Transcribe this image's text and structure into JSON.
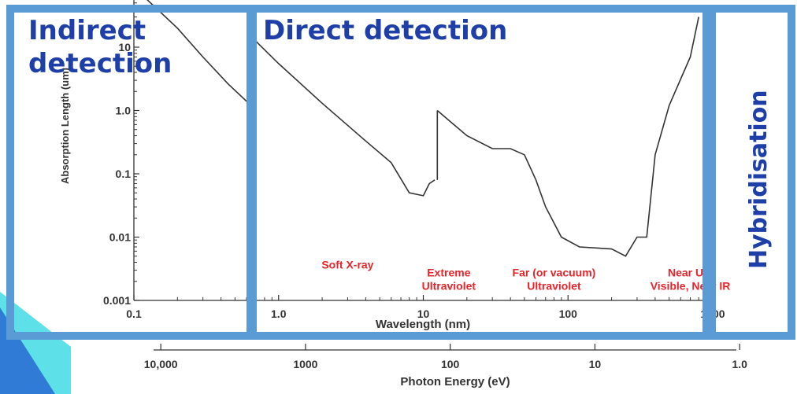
{
  "chart_data": {
    "type": "line",
    "xlabel": "Wavelength (nm)",
    "ylabel": "Absorption Length (um)",
    "x2label": "Photon Energy (eV)",
    "x_scale": "log",
    "y_scale": "log",
    "xlim": [
      0.1,
      1000
    ],
    "ylim": [
      0.001,
      60
    ],
    "x_ticks": [
      "0.1",
      "1.0",
      "10",
      "100",
      "1000"
    ],
    "y_ticks": [
      "0.001",
      "0.01",
      "0.1",
      "1.0",
      "10"
    ],
    "x2_ticks": [
      {
        "label": "10,000",
        "wavelength": 0.124
      },
      {
        "label": "1000",
        "wavelength": 1.24
      },
      {
        "label": "100",
        "wavelength": 12.4
      },
      {
        "label": "10",
        "wavelength": 124
      },
      {
        "label": "1.0",
        "wavelength": 1240
      }
    ],
    "series": [
      {
        "segments": [
          [
            [
              0.12,
              60
            ],
            [
              0.2,
              20
            ],
            [
              0.3,
              7
            ],
            [
              0.45,
              2.6
            ],
            [
              0.6,
              1.4
            ],
            [
              0.65,
              1.3
            ]
          ],
          [
            [
              0.66,
              14
            ],
            [
              1.0,
              5.5
            ],
            [
              2.0,
              1.3
            ],
            [
              4.0,
              0.33
            ],
            [
              6.0,
              0.15
            ],
            [
              8.0,
              0.05
            ],
            [
              10.0,
              0.045
            ],
            [
              11.0,
              0.07
            ],
            [
              12.0,
              0.08
            ]
          ],
          [
            [
              12.5,
              1.0
            ],
            [
              15,
              0.7
            ],
            [
              20,
              0.4
            ],
            [
              30,
              0.25
            ],
            [
              40,
              0.25
            ],
            [
              50,
              0.2
            ],
            [
              60,
              0.08
            ],
            [
              70,
              0.03
            ],
            [
              90,
              0.01
            ],
            [
              120,
              0.007
            ],
            [
              200,
              0.0065
            ],
            [
              250,
              0.005
            ],
            [
              300,
              0.01
            ],
            [
              350,
              0.01
            ],
            [
              400,
              0.2
            ],
            [
              500,
              1.2
            ],
            [
              700,
              7
            ],
            [
              800,
              30
            ]
          ]
        ]
      }
    ],
    "annotations": [
      {
        "text": "Soft X-ray",
        "x": 3.0,
        "y": 0.0032
      },
      {
        "text": "Extreme\nUltraviolet",
        "x": 15,
        "y": 0.0024
      },
      {
        "text": "Far (or vacuum)\nUltraviolet",
        "x": 80,
        "y": 0.0024
      },
      {
        "text": "Near UV,\nVisible, Near IR",
        "x": 700,
        "y": 0.0024
      }
    ],
    "colors": {
      "line": "#333333",
      "annotation": "#e8232a",
      "axis": "#333333"
    }
  },
  "overlays": {
    "indirect": "Indirect\ndetection",
    "direct": "Direct detection",
    "hybrid": "Hybridisation",
    "border_color": "#5b9bd5",
    "title_color": "#1f3fa8"
  }
}
